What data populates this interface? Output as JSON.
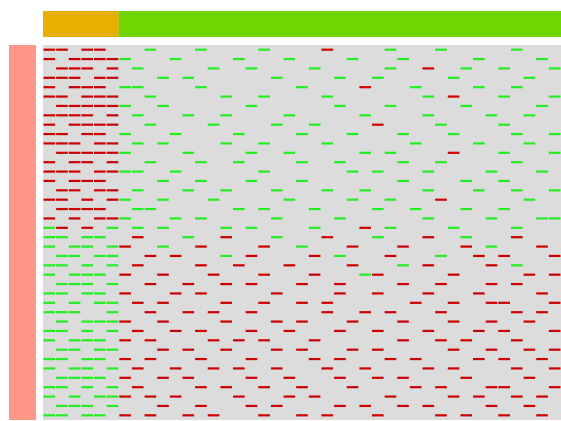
{
  "chart_data": {
    "type": "heatmap",
    "high_color": "#cc0000",
    "low_color": "#22ee22",
    "mid_color": "#dcdcdc",
    "row_annotation_color": "#ff9488",
    "column_annotation": [
      {
        "color": "#e6b000",
        "span": 6
      },
      {
        "color": "#6fd400",
        "span": 35
      }
    ],
    "values": [
      [
        1,
        1,
        0,
        1,
        1,
        0,
        0,
        0,
        -1,
        0,
        0,
        0,
        -1,
        0,
        0,
        0,
        0,
        -1,
        0,
        0,
        0,
        0,
        1,
        0,
        0,
        0,
        0,
        -1,
        0,
        0,
        0,
        -1,
        0,
        0,
        0,
        0,
        0,
        -1,
        0,
        0,
        0
      ],
      [
        1,
        0,
        1,
        1,
        1,
        1,
        -1,
        0,
        0,
        0,
        -1,
        0,
        0,
        0,
        0,
        -1,
        0,
        0,
        0,
        -1,
        0,
        0,
        0,
        0,
        -1,
        0,
        0,
        0,
        -1,
        0,
        0,
        0,
        0,
        0,
        -1,
        0,
        0,
        0,
        0,
        -1,
        0
      ],
      [
        0,
        1,
        1,
        1,
        0,
        1,
        0,
        -1,
        0,
        0,
        0,
        0,
        0,
        -1,
        0,
        0,
        -1,
        0,
        0,
        0,
        0,
        -1,
        0,
        0,
        0,
        0,
        0,
        -1,
        0,
        0,
        1,
        0,
        0,
        -1,
        0,
        0,
        -1,
        0,
        0,
        0,
        -1
      ],
      [
        1,
        1,
        1,
        0,
        1,
        1,
        0,
        0,
        0,
        -1,
        0,
        -1,
        0,
        0,
        0,
        0,
        0,
        0,
        -1,
        0,
        0,
        0,
        0,
        -1,
        0,
        0,
        -1,
        0,
        0,
        0,
        0,
        0,
        -1,
        0,
        0,
        0,
        0,
        0,
        -1,
        0,
        0
      ],
      [
        1,
        0,
        1,
        1,
        1,
        0,
        -1,
        -1,
        0,
        0,
        0,
        0,
        -1,
        0,
        0,
        0,
        0,
        0,
        0,
        0,
        -1,
        0,
        0,
        0,
        0,
        1,
        0,
        0,
        0,
        -1,
        0,
        0,
        0,
        0,
        -1,
        0,
        0,
        -1,
        0,
        0,
        0
      ],
      [
        1,
        1,
        0,
        1,
        1,
        1,
        0,
        0,
        -1,
        0,
        0,
        0,
        0,
        0,
        -1,
        0,
        0,
        -1,
        0,
        0,
        0,
        0,
        -1,
        0,
        0,
        0,
        0,
        0,
        0,
        0,
        -1,
        0,
        1,
        0,
        0,
        0,
        -1,
        0,
        0,
        0,
        -1
      ],
      [
        0,
        1,
        1,
        1,
        1,
        1,
        -1,
        0,
        0,
        -1,
        0,
        0,
        0,
        0,
        0,
        0,
        -1,
        0,
        0,
        0,
        0,
        0,
        0,
        -1,
        0,
        0,
        0,
        -1,
        0,
        0,
        0,
        0,
        0,
        -1,
        0,
        0,
        0,
        0,
        0,
        -1,
        0
      ],
      [
        1,
        1,
        1,
        1,
        0,
        1,
        0,
        -1,
        0,
        0,
        0,
        -1,
        0,
        0,
        -1,
        0,
        0,
        0,
        0,
        -1,
        0,
        0,
        0,
        0,
        0,
        -1,
        0,
        0,
        0,
        0,
        -1,
        0,
        0,
        0,
        0,
        -1,
        0,
        0,
        -1,
        0,
        0
      ],
      [
        1,
        0,
        1,
        1,
        1,
        1,
        0,
        0,
        -1,
        0,
        0,
        0,
        0,
        -1,
        0,
        0,
        0,
        0,
        -1,
        0,
        0,
        -1,
        0,
        0,
        0,
        0,
        1,
        0,
        0,
        0,
        0,
        -1,
        0,
        0,
        0,
        0,
        -1,
        0,
        0,
        0,
        0
      ],
      [
        1,
        1,
        0,
        1,
        1,
        0,
        -1,
        0,
        0,
        0,
        -1,
        0,
        0,
        0,
        0,
        -1,
        0,
        0,
        0,
        0,
        -1,
        0,
        0,
        0,
        -1,
        0,
        0,
        0,
        -1,
        0,
        0,
        0,
        -1,
        0,
        0,
        0,
        0,
        -1,
        0,
        0,
        -1
      ],
      [
        1,
        1,
        1,
        0,
        1,
        1,
        0,
        -1,
        0,
        -1,
        0,
        0,
        0,
        0,
        -1,
        0,
        0,
        -1,
        0,
        0,
        0,
        0,
        -1,
        0,
        0,
        0,
        0,
        0,
        0,
        -1,
        0,
        0,
        0,
        0,
        -1,
        0,
        0,
        0,
        -1,
        0,
        0
      ],
      [
        0,
        1,
        1,
        1,
        1,
        1,
        -1,
        0,
        0,
        0,
        0,
        -1,
        0,
        0,
        0,
        0,
        -1,
        0,
        0,
        -1,
        0,
        0,
        0,
        0,
        0,
        -1,
        0,
        -1,
        0,
        0,
        0,
        0,
        1,
        0,
        0,
        0,
        -1,
        0,
        0,
        0,
        -1
      ],
      [
        1,
        0,
        1,
        1,
        0,
        1,
        0,
        0,
        -1,
        0,
        0,
        0,
        -1,
        0,
        0,
        -1,
        0,
        0,
        0,
        0,
        -1,
        0,
        0,
        -1,
        0,
        0,
        0,
        0,
        -1,
        0,
        0,
        -1,
        0,
        0,
        0,
        0,
        0,
        -1,
        0,
        0,
        0
      ],
      [
        1,
        1,
        1,
        0,
        1,
        1,
        -1,
        -1,
        0,
        0,
        -1,
        0,
        0,
        0,
        0,
        0,
        0,
        -1,
        0,
        0,
        0,
        0,
        0,
        0,
        -1,
        0,
        -1,
        0,
        0,
        0,
        -1,
        0,
        0,
        0,
        0,
        -1,
        0,
        0,
        0,
        -1,
        0
      ],
      [
        1,
        0,
        1,
        1,
        1,
        0,
        0,
        0,
        0,
        -1,
        0,
        0,
        -1,
        0,
        0,
        0,
        -1,
        0,
        0,
        0,
        -1,
        0,
        0,
        0,
        0,
        0,
        0,
        0,
        -1,
        0,
        0,
        0,
        0,
        -1,
        0,
        0,
        -1,
        0,
        0,
        0,
        0
      ],
      [
        0,
        1,
        1,
        0,
        1,
        1,
        0,
        -1,
        0,
        0,
        0,
        -1,
        0,
        0,
        -1,
        0,
        0,
        0,
        -1,
        0,
        0,
        0,
        -1,
        0,
        0,
        -1,
        0,
        0,
        0,
        0,
        -1,
        0,
        0,
        0,
        -1,
        0,
        0,
        -1,
        0,
        0,
        -1
      ],
      [
        1,
        1,
        0,
        1,
        0,
        1,
        -1,
        0,
        0,
        -1,
        0,
        0,
        0,
        -1,
        0,
        0,
        0,
        0,
        0,
        -1,
        0,
        0,
        0,
        0,
        -1,
        0,
        0,
        -1,
        0,
        0,
        0,
        1,
        0,
        0,
        0,
        0,
        0,
        0,
        -1,
        0,
        0
      ],
      [
        0,
        1,
        1,
        1,
        1,
        0,
        0,
        -1,
        -1,
        0,
        0,
        0,
        0,
        0,
        0,
        -1,
        0,
        -1,
        0,
        0,
        0,
        -1,
        0,
        0,
        0,
        0,
        -1,
        0,
        0,
        -1,
        0,
        0,
        0,
        -1,
        0,
        0,
        -1,
        0,
        0,
        0,
        0
      ],
      [
        1,
        0,
        1,
        0,
        1,
        1,
        -1,
        0,
        0,
        0,
        -1,
        0,
        -1,
        0,
        0,
        0,
        0,
        0,
        -1,
        0,
        0,
        0,
        0,
        -1,
        0,
        0,
        0,
        0,
        0,
        0,
        -1,
        0,
        0,
        0,
        0,
        -1,
        0,
        0,
        0,
        -1,
        -1
      ],
      [
        -1,
        1,
        0,
        1,
        0,
        -1,
        0,
        -1,
        0,
        -1,
        0,
        0,
        0,
        0,
        -1,
        0,
        -1,
        0,
        0,
        0,
        0,
        -1,
        0,
        0,
        0,
        1,
        0,
        -1,
        0,
        0,
        0,
        0,
        -1,
        0,
        0,
        0,
        0,
        -1,
        0,
        0,
        0
      ],
      [
        -1,
        -1,
        0,
        -1,
        -1,
        0,
        0,
        1,
        0,
        0,
        0,
        -1,
        0,
        0,
        1,
        0,
        0,
        0,
        -1,
        0,
        0,
        0,
        1,
        0,
        0,
        0,
        -1,
        0,
        0,
        0,
        1,
        0,
        0,
        -1,
        0,
        0,
        0,
        1,
        0,
        0,
        0
      ],
      [
        -1,
        0,
        -1,
        -1,
        0,
        -1,
        1,
        0,
        0,
        -1,
        0,
        0,
        1,
        0,
        0,
        0,
        0,
        1,
        0,
        0,
        -1,
        0,
        0,
        0,
        1,
        0,
        0,
        0,
        1,
        0,
        0,
        0,
        0,
        1,
        0,
        -1,
        0,
        0,
        0,
        1,
        0
      ],
      [
        0,
        -1,
        -1,
        0,
        -1,
        -1,
        0,
        0,
        1,
        0,
        1,
        0,
        0,
        0,
        -1,
        0,
        1,
        0,
        0,
        0,
        0,
        1,
        0,
        -1,
        0,
        0,
        0,
        1,
        0,
        0,
        0,
        -1,
        0,
        0,
        1,
        0,
        1,
        0,
        0,
        0,
        1
      ],
      [
        -1,
        -1,
        0,
        -1,
        0,
        -1,
        0,
        1,
        0,
        0,
        0,
        0,
        1,
        0,
        0,
        1,
        0,
        0,
        0,
        1,
        0,
        0,
        0,
        0,
        1,
        0,
        0,
        0,
        -1,
        0,
        1,
        0,
        0,
        0,
        0,
        1,
        0,
        -1,
        0,
        0,
        0
      ],
      [
        -1,
        0,
        -1,
        -1,
        -1,
        0,
        1,
        0,
        0,
        1,
        0,
        0,
        0,
        1,
        0,
        0,
        0,
        1,
        0,
        0,
        0,
        1,
        0,
        0,
        0,
        -1,
        1,
        0,
        0,
        0,
        0,
        0,
        1,
        0,
        0,
        0,
        0,
        0,
        1,
        0,
        1
      ],
      [
        0,
        -1,
        -1,
        -1,
        0,
        -1,
        0,
        0,
        1,
        0,
        0,
        1,
        0,
        0,
        1,
        0,
        1,
        0,
        0,
        0,
        1,
        0,
        0,
        1,
        0,
        0,
        0,
        0,
        1,
        0,
        0,
        1,
        0,
        0,
        0,
        1,
        0,
        1,
        0,
        0,
        0
      ],
      [
        -1,
        -1,
        0,
        -1,
        -1,
        0,
        1,
        0,
        0,
        0,
        1,
        0,
        1,
        0,
        0,
        0,
        0,
        0,
        1,
        0,
        0,
        0,
        0,
        1,
        0,
        0,
        1,
        0,
        0,
        0,
        1,
        0,
        0,
        0,
        1,
        0,
        0,
        0,
        0,
        1,
        0
      ],
      [
        -1,
        0,
        -1,
        0,
        -1,
        -1,
        0,
        1,
        0,
        1,
        0,
        0,
        0,
        0,
        1,
        0,
        0,
        1,
        0,
        0,
        1,
        0,
        1,
        0,
        0,
        0,
        0,
        0,
        0,
        1,
        0,
        0,
        1,
        0,
        0,
        1,
        1,
        0,
        0,
        0,
        1
      ],
      [
        -1,
        -1,
        -1,
        0,
        0,
        -1,
        0,
        0,
        1,
        0,
        0,
        1,
        0,
        1,
        0,
        0,
        1,
        0,
        0,
        0,
        0,
        0,
        1,
        0,
        0,
        1,
        0,
        1,
        0,
        0,
        0,
        1,
        0,
        0,
        0,
        0,
        0,
        1,
        0,
        1,
        0
      ],
      [
        0,
        -1,
        0,
        -1,
        -1,
        -1,
        1,
        0,
        0,
        1,
        0,
        0,
        0,
        0,
        1,
        0,
        0,
        0,
        1,
        0,
        1,
        0,
        0,
        0,
        1,
        0,
        0,
        0,
        1,
        0,
        0,
        0,
        1,
        0,
        0,
        1,
        0,
        0,
        1,
        0,
        0
      ],
      [
        -1,
        -1,
        0,
        -1,
        0,
        -1,
        0,
        1,
        0,
        0,
        1,
        0,
        1,
        0,
        0,
        0,
        1,
        0,
        0,
        1,
        0,
        0,
        0,
        1,
        0,
        0,
        1,
        0,
        0,
        0,
        1,
        0,
        0,
        0,
        1,
        0,
        1,
        0,
        0,
        0,
        1
      ],
      [
        -1,
        0,
        -1,
        -1,
        -1,
        0,
        1,
        0,
        1,
        0,
        0,
        0,
        0,
        1,
        0,
        1,
        0,
        1,
        0,
        0,
        0,
        1,
        0,
        0,
        0,
        0,
        0,
        0,
        1,
        0,
        0,
        1,
        0,
        1,
        0,
        0,
        0,
        1,
        0,
        0,
        0
      ],
      [
        0,
        -1,
        -1,
        0,
        -1,
        -1,
        0,
        0,
        0,
        1,
        0,
        1,
        0,
        0,
        1,
        0,
        0,
        0,
        1,
        0,
        1,
        0,
        0,
        0,
        1,
        0,
        1,
        0,
        0,
        0,
        0,
        0,
        1,
        0,
        0,
        1,
        0,
        0,
        1,
        0,
        1
      ],
      [
        -1,
        -1,
        0,
        -1,
        -1,
        0,
        1,
        0,
        1,
        0,
        0,
        0,
        1,
        0,
        0,
        0,
        1,
        0,
        0,
        0,
        0,
        1,
        0,
        1,
        0,
        0,
        0,
        1,
        0,
        1,
        0,
        0,
        0,
        0,
        1,
        0,
        1,
        0,
        0,
        1,
        0
      ],
      [
        -1,
        0,
        -1,
        -1,
        0,
        -1,
        0,
        1,
        0,
        0,
        1,
        0,
        0,
        1,
        0,
        1,
        0,
        0,
        1,
        0,
        0,
        0,
        1,
        0,
        0,
        1,
        0,
        0,
        0,
        0,
        1,
        0,
        1,
        0,
        0,
        0,
        0,
        1,
        0,
        0,
        1
      ],
      [
        0,
        -1,
        -1,
        -1,
        -1,
        0,
        1,
        0,
        0,
        1,
        0,
        1,
        0,
        0,
        0,
        0,
        1,
        0,
        0,
        1,
        0,
        0,
        0,
        1,
        0,
        0,
        1,
        0,
        1,
        0,
        0,
        0,
        0,
        1,
        0,
        0,
        0,
        0,
        1,
        0,
        0
      ],
      [
        -1,
        -1,
        0,
        -1,
        0,
        -1,
        0,
        1,
        0,
        0,
        0,
        0,
        1,
        0,
        1,
        0,
        0,
        1,
        0,
        0,
        1,
        0,
        0,
        0,
        1,
        0,
        0,
        0,
        0,
        1,
        0,
        1,
        0,
        0,
        0,
        1,
        1,
        0,
        0,
        0,
        1
      ],
      [
        -1,
        0,
        -1,
        0,
        -1,
        -1,
        1,
        0,
        1,
        0,
        1,
        0,
        0,
        0,
        0,
        1,
        0,
        0,
        0,
        1,
        0,
        1,
        0,
        0,
        0,
        0,
        0,
        1,
        0,
        0,
        0,
        0,
        1,
        0,
        1,
        0,
        0,
        1,
        0,
        1,
        0
      ],
      [
        0,
        -1,
        -1,
        -1,
        0,
        -1,
        0,
        0,
        0,
        1,
        0,
        0,
        1,
        0,
        0,
        0,
        1,
        0,
        1,
        0,
        0,
        0,
        0,
        1,
        0,
        1,
        0,
        0,
        1,
        0,
        1,
        0,
        0,
        0,
        0,
        1,
        0,
        0,
        1,
        0,
        0
      ],
      [
        -1,
        -1,
        0,
        -1,
        -1,
        0,
        1,
        0,
        1,
        0,
        0,
        1,
        0,
        1,
        0,
        0,
        0,
        1,
        0,
        0,
        1,
        0,
        1,
        0,
        0,
        0,
        1,
        0,
        0,
        0,
        0,
        1,
        0,
        1,
        0,
        0,
        1,
        0,
        0,
        1,
        0
      ]
    ]
  }
}
